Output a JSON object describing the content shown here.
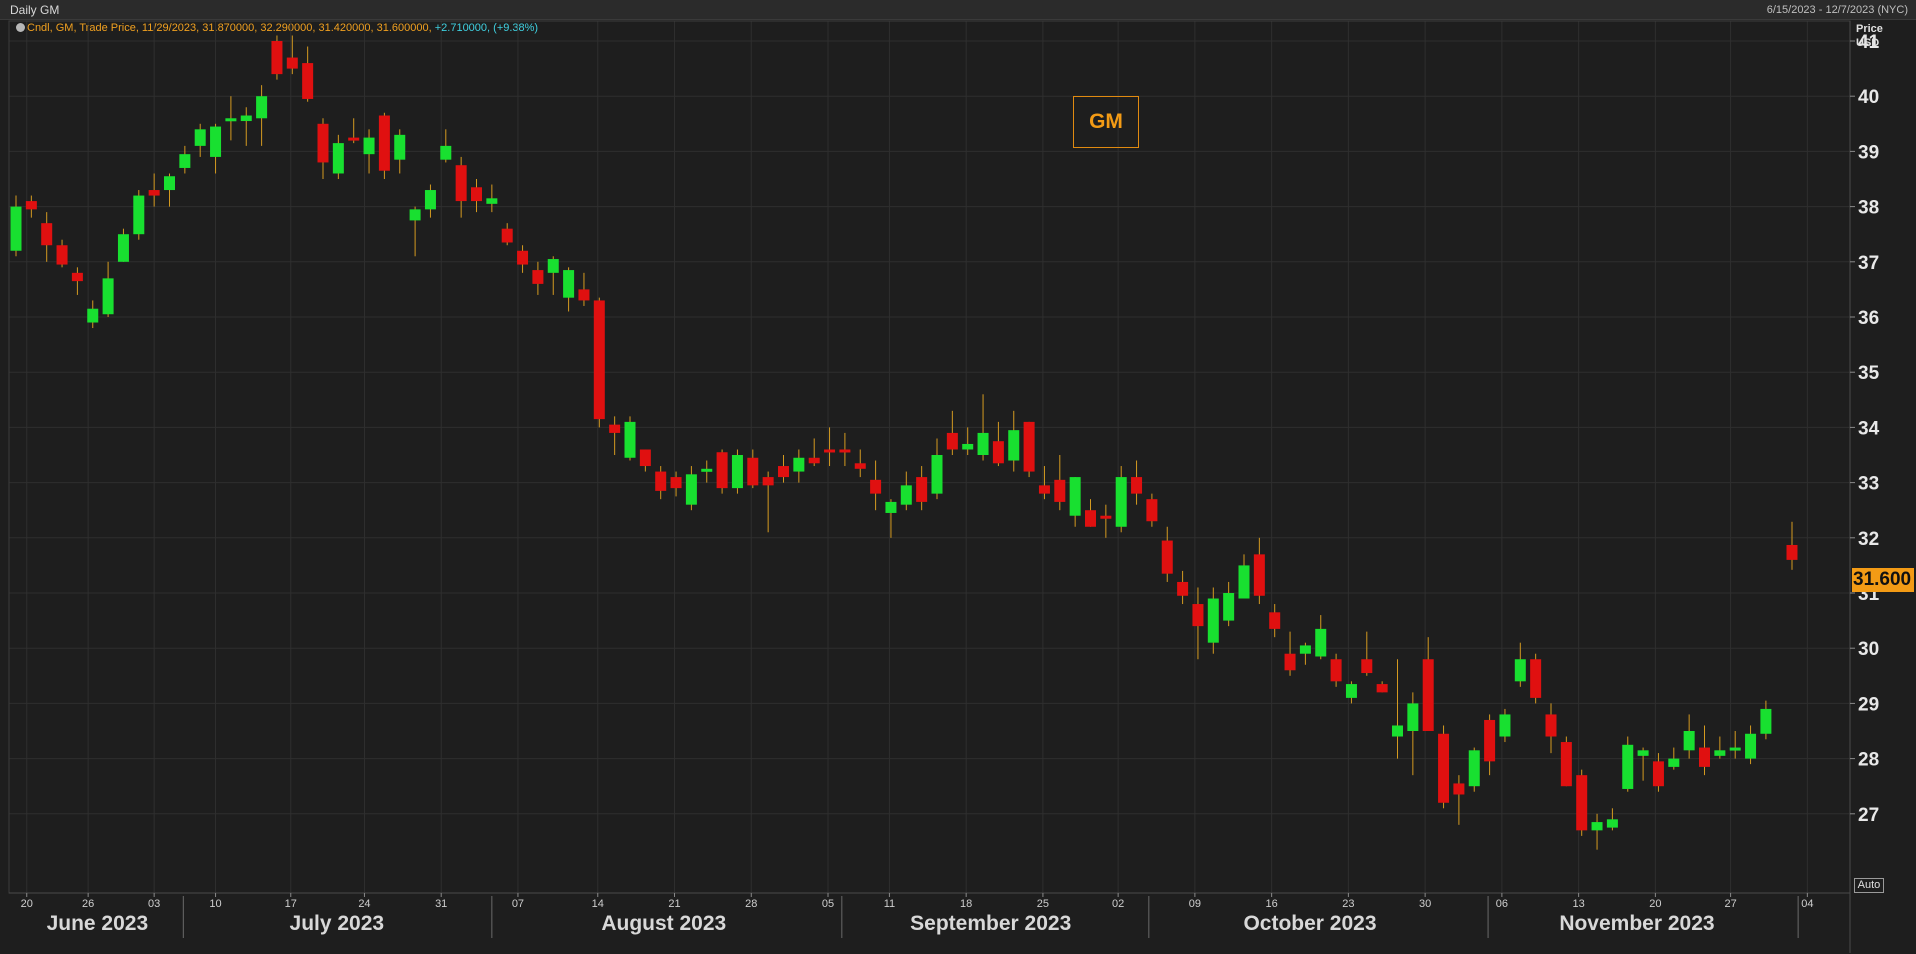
{
  "window": {
    "title": "Daily GM",
    "date_range": "6/15/2023 - 12/7/2023 (NYC)"
  },
  "info_line": {
    "prefix": "Cndl, GM, Trade Price, 11/29/2023, 31.870000, 32.290000, 31.420000, 31.600000,",
    "change": "+2.710000, (+9.38%)"
  },
  "ticker_label": "GM",
  "last_price_badge": "31.600",
  "auto_button": "Auto",
  "colors": {
    "up": "#18e030",
    "down": "#e01010",
    "wick": "#d49a20",
    "badge": "#f39b15"
  },
  "chart_data": {
    "type": "candlestick",
    "y_axis": {
      "title_line1": "Price",
      "title_line2": "USD",
      "min": 26.0,
      "max": 41.5,
      "ticks": [
        27,
        28,
        29,
        30,
        31,
        32,
        33,
        34,
        35,
        36,
        37,
        38,
        39,
        40,
        41
      ]
    },
    "x_day_ticks": [
      {
        "label": "20",
        "t": 0.7
      },
      {
        "label": "26",
        "t": 4.7
      },
      {
        "label": "03",
        "t": 9.0
      },
      {
        "label": "10",
        "t": 13.0
      },
      {
        "label": "17",
        "t": 17.9
      },
      {
        "label": "24",
        "t": 22.7
      },
      {
        "label": "31",
        "t": 27.7
      },
      {
        "label": "07",
        "t": 32.7
      },
      {
        "label": "14",
        "t": 37.9
      },
      {
        "label": "21",
        "t": 42.9
      },
      {
        "label": "28",
        "t": 47.9
      },
      {
        "label": "05",
        "t": 52.9
      },
      {
        "label": "11",
        "t": 56.9
      },
      {
        "label": "18",
        "t": 61.9
      },
      {
        "label": "25",
        "t": 66.9
      },
      {
        "label": "02",
        "t": 71.8
      },
      {
        "label": "09",
        "t": 76.8
      },
      {
        "label": "16",
        "t": 81.8
      },
      {
        "label": "23",
        "t": 86.8
      },
      {
        "label": "30",
        "t": 91.8
      },
      {
        "label": "06",
        "t": 96.8
      },
      {
        "label": "13",
        "t": 101.8
      },
      {
        "label": "20",
        "t": 106.8
      },
      {
        "label": "27",
        "t": 111.7
      },
      {
        "label": "04",
        "t": 116.7
      }
    ],
    "months": [
      {
        "label": "June 2023",
        "t": 5.3,
        "sep": 10.9
      },
      {
        "label": "July 2023",
        "t": 20.9,
        "sep": 31.0
      },
      {
        "label": "August 2023",
        "t": 42.2,
        "sep": 53.8
      },
      {
        "label": "September 2023",
        "t": 63.5,
        "sep": 73.8
      },
      {
        "label": "October 2023",
        "t": 84.3,
        "sep": 95.9
      },
      {
        "label": "November 2023",
        "t": 105.6,
        "sep": 116.1
      }
    ],
    "candles": [
      {
        "t": 0,
        "o": 37.2,
        "h": 38.2,
        "l": 37.1,
        "c": 38.0
      },
      {
        "t": 1,
        "o": 38.1,
        "h": 38.2,
        "l": 37.8,
        "c": 37.95
      },
      {
        "t": 2,
        "o": 37.7,
        "h": 37.9,
        "l": 37.0,
        "c": 37.3
      },
      {
        "t": 3,
        "o": 37.3,
        "h": 37.4,
        "l": 36.9,
        "c": 36.95
      },
      {
        "t": 4,
        "o": 36.8,
        "h": 36.9,
        "l": 36.4,
        "c": 36.65
      },
      {
        "t": 5,
        "o": 35.9,
        "h": 36.3,
        "l": 35.8,
        "c": 36.15
      },
      {
        "t": 6,
        "o": 36.05,
        "h": 37.0,
        "l": 36.0,
        "c": 36.7
      },
      {
        "t": 7,
        "o": 37.0,
        "h": 37.6,
        "l": 37.0,
        "c": 37.5
      },
      {
        "t": 8,
        "o": 37.5,
        "h": 38.3,
        "l": 37.4,
        "c": 38.2
      },
      {
        "t": 9,
        "o": 38.3,
        "h": 38.6,
        "l": 38.0,
        "c": 38.2
      },
      {
        "t": 10,
        "o": 38.3,
        "h": 38.6,
        "l": 38.0,
        "c": 38.55
      },
      {
        "t": 11,
        "o": 38.7,
        "h": 39.1,
        "l": 38.6,
        "c": 38.95
      },
      {
        "t": 12,
        "o": 39.1,
        "h": 39.5,
        "l": 38.9,
        "c": 39.4
      },
      {
        "t": 13,
        "o": 38.9,
        "h": 39.5,
        "l": 38.6,
        "c": 39.45
      },
      {
        "t": 14,
        "o": 39.55,
        "h": 40.0,
        "l": 39.2,
        "c": 39.6
      },
      {
        "t": 15,
        "o": 39.55,
        "h": 39.8,
        "l": 39.1,
        "c": 39.65
      },
      {
        "t": 16,
        "o": 39.6,
        "h": 40.2,
        "l": 39.1,
        "c": 40.0
      },
      {
        "t": 17,
        "o": 41.0,
        "h": 41.1,
        "l": 40.3,
        "c": 40.4
      },
      {
        "t": 18,
        "o": 40.7,
        "h": 41.1,
        "l": 40.4,
        "c": 40.5
      },
      {
        "t": 19,
        "o": 40.6,
        "h": 40.9,
        "l": 39.9,
        "c": 39.95
      },
      {
        "t": 20,
        "o": 39.5,
        "h": 39.6,
        "l": 38.5,
        "c": 38.8
      },
      {
        "t": 21,
        "o": 38.6,
        "h": 39.3,
        "l": 38.5,
        "c": 39.15
      },
      {
        "t": 22,
        "o": 39.25,
        "h": 39.6,
        "l": 39.15,
        "c": 39.2
      },
      {
        "t": 23,
        "o": 38.95,
        "h": 39.4,
        "l": 38.6,
        "c": 39.25
      },
      {
        "t": 24,
        "o": 39.65,
        "h": 39.7,
        "l": 38.5,
        "c": 38.65
      },
      {
        "t": 25,
        "o": 38.85,
        "h": 39.4,
        "l": 38.6,
        "c": 39.3
      },
      {
        "t": 26,
        "o": 37.75,
        "h": 38.0,
        "l": 37.1,
        "c": 37.95
      },
      {
        "t": 27,
        "o": 37.95,
        "h": 38.4,
        "l": 37.8,
        "c": 38.3
      },
      {
        "t": 28,
        "o": 38.85,
        "h": 39.4,
        "l": 38.8,
        "c": 39.1
      },
      {
        "t": 29,
        "o": 38.75,
        "h": 38.9,
        "l": 37.8,
        "c": 38.1
      },
      {
        "t": 30,
        "o": 38.35,
        "h": 38.5,
        "l": 37.9,
        "c": 38.1
      },
      {
        "t": 31,
        "o": 38.05,
        "h": 38.4,
        "l": 37.9,
        "c": 38.15
      },
      {
        "t": 32,
        "o": 37.6,
        "h": 37.7,
        "l": 37.3,
        "c": 37.35
      },
      {
        "t": 33,
        "o": 37.2,
        "h": 37.3,
        "l": 36.8,
        "c": 36.95
      },
      {
        "t": 34,
        "o": 36.85,
        "h": 37.0,
        "l": 36.4,
        "c": 36.6
      },
      {
        "t": 35,
        "o": 36.8,
        "h": 37.1,
        "l": 36.4,
        "c": 37.05
      },
      {
        "t": 36,
        "o": 36.35,
        "h": 36.9,
        "l": 36.1,
        "c": 36.85
      },
      {
        "t": 37,
        "o": 36.5,
        "h": 36.8,
        "l": 36.2,
        "c": 36.3
      },
      {
        "t": 38,
        "o": 36.3,
        "h": 36.35,
        "l": 34.0,
        "c": 34.15
      },
      {
        "t": 39,
        "o": 34.05,
        "h": 34.2,
        "l": 33.5,
        "c": 33.9
      },
      {
        "t": 40,
        "o": 33.45,
        "h": 34.2,
        "l": 33.4,
        "c": 34.1
      },
      {
        "t": 41,
        "o": 33.6,
        "h": 33.6,
        "l": 33.2,
        "c": 33.3
      },
      {
        "t": 42,
        "o": 33.2,
        "h": 33.3,
        "l": 32.7,
        "c": 32.85
      },
      {
        "t": 43,
        "o": 33.1,
        "h": 33.2,
        "l": 32.75,
        "c": 32.9
      },
      {
        "t": 44,
        "o": 32.6,
        "h": 33.3,
        "l": 32.5,
        "c": 33.15
      },
      {
        "t": 45,
        "o": 33.25,
        "h": 33.4,
        "l": 33.0,
        "c": 33.25
      },
      {
        "t": 46,
        "o": 33.55,
        "h": 33.6,
        "l": 32.8,
        "c": 32.9
      },
      {
        "t": 47,
        "o": 32.9,
        "h": 33.6,
        "l": 32.8,
        "c": 33.5
      },
      {
        "t": 48,
        "o": 33.45,
        "h": 33.6,
        "l": 32.9,
        "c": 32.95
      },
      {
        "t": 49,
        "o": 33.1,
        "h": 33.2,
        "l": 32.1,
        "c": 32.95
      },
      {
        "t": 50,
        "o": 33.3,
        "h": 33.5,
        "l": 33.0,
        "c": 33.1
      },
      {
        "t": 51,
        "o": 33.2,
        "h": 33.6,
        "l": 33.0,
        "c": 33.45
      },
      {
        "t": 52,
        "o": 33.45,
        "h": 33.8,
        "l": 33.3,
        "c": 33.35
      },
      {
        "t": 53,
        "o": 33.6,
        "h": 34.0,
        "l": 33.3,
        "c": 33.55
      },
      {
        "t": 54,
        "o": 33.6,
        "h": 33.9,
        "l": 33.3,
        "c": 33.55
      },
      {
        "t": 55,
        "o": 33.35,
        "h": 33.6,
        "l": 33.1,
        "c": 33.25
      },
      {
        "t": 56,
        "o": 33.05,
        "h": 33.4,
        "l": 32.5,
        "c": 32.8
      },
      {
        "t": 57,
        "o": 32.45,
        "h": 32.7,
        "l": 32.0,
        "c": 32.65
      },
      {
        "t": 58,
        "o": 32.6,
        "h": 33.2,
        "l": 32.5,
        "c": 32.95
      },
      {
        "t": 59,
        "o": 33.1,
        "h": 33.3,
        "l": 32.5,
        "c": 32.65
      },
      {
        "t": 60,
        "o": 32.8,
        "h": 33.8,
        "l": 32.7,
        "c": 33.5
      },
      {
        "t": 61,
        "o": 33.9,
        "h": 34.3,
        "l": 33.5,
        "c": 33.6
      },
      {
        "t": 62,
        "o": 33.6,
        "h": 34.0,
        "l": 33.5,
        "c": 33.7
      },
      {
        "t": 63,
        "o": 33.5,
        "h": 34.6,
        "l": 33.4,
        "c": 33.9
      },
      {
        "t": 64,
        "o": 33.75,
        "h": 34.1,
        "l": 33.3,
        "c": 33.35
      },
      {
        "t": 65,
        "o": 33.4,
        "h": 34.3,
        "l": 33.2,
        "c": 33.95
      },
      {
        "t": 66,
        "o": 34.1,
        "h": 34.1,
        "l": 33.1,
        "c": 33.2
      },
      {
        "t": 67,
        "o": 32.95,
        "h": 33.3,
        "l": 32.7,
        "c": 32.8
      },
      {
        "t": 68,
        "o": 33.05,
        "h": 33.5,
        "l": 32.5,
        "c": 32.65
      },
      {
        "t": 69,
        "o": 32.4,
        "h": 33.1,
        "l": 32.2,
        "c": 33.1
      },
      {
        "t": 70,
        "o": 32.5,
        "h": 32.7,
        "l": 32.2,
        "c": 32.2
      },
      {
        "t": 71,
        "o": 32.4,
        "h": 32.6,
        "l": 32.0,
        "c": 32.35
      },
      {
        "t": 72,
        "o": 32.2,
        "h": 33.3,
        "l": 32.1,
        "c": 33.1
      },
      {
        "t": 73,
        "o": 33.1,
        "h": 33.4,
        "l": 32.6,
        "c": 32.8
      },
      {
        "t": 74,
        "o": 32.7,
        "h": 32.8,
        "l": 32.2,
        "c": 32.3
      },
      {
        "t": 75,
        "o": 31.95,
        "h": 32.2,
        "l": 31.2,
        "c": 31.35
      },
      {
        "t": 76,
        "o": 31.2,
        "h": 31.4,
        "l": 30.8,
        "c": 30.95
      },
      {
        "t": 77,
        "o": 30.8,
        "h": 31.1,
        "l": 29.8,
        "c": 30.4
      },
      {
        "t": 78,
        "o": 30.1,
        "h": 31.1,
        "l": 29.9,
        "c": 30.9
      },
      {
        "t": 79,
        "o": 30.5,
        "h": 31.2,
        "l": 30.4,
        "c": 31.0
      },
      {
        "t": 80,
        "o": 30.9,
        "h": 31.7,
        "l": 30.9,
        "c": 31.5
      },
      {
        "t": 81,
        "o": 31.7,
        "h": 32.0,
        "l": 30.8,
        "c": 30.95
      },
      {
        "t": 82,
        "o": 30.65,
        "h": 30.8,
        "l": 30.2,
        "c": 30.35
      },
      {
        "t": 83,
        "o": 29.9,
        "h": 30.3,
        "l": 29.5,
        "c": 29.6
      },
      {
        "t": 84,
        "o": 29.9,
        "h": 30.1,
        "l": 29.7,
        "c": 30.05
      },
      {
        "t": 85,
        "o": 29.85,
        "h": 30.6,
        "l": 29.8,
        "c": 30.35
      },
      {
        "t": 86,
        "o": 29.8,
        "h": 29.9,
        "l": 29.3,
        "c": 29.4
      },
      {
        "t": 87,
        "o": 29.1,
        "h": 29.4,
        "l": 29.0,
        "c": 29.35
      },
      {
        "t": 88,
        "o": 29.8,
        "h": 30.3,
        "l": 29.5,
        "c": 29.55
      },
      {
        "t": 89,
        "o": 29.35,
        "h": 29.4,
        "l": 29.2,
        "c": 29.2
      },
      {
        "t": 90,
        "o": 28.4,
        "h": 29.8,
        "l": 28.0,
        "c": 28.6
      },
      {
        "t": 91,
        "o": 28.5,
        "h": 29.2,
        "l": 27.7,
        "c": 29.0
      },
      {
        "t": 92,
        "o": 29.8,
        "h": 30.2,
        "l": 28.5,
        "c": 28.5
      },
      {
        "t": 93,
        "o": 28.45,
        "h": 28.6,
        "l": 27.1,
        "c": 27.2
      },
      {
        "t": 94,
        "o": 27.55,
        "h": 27.7,
        "l": 26.8,
        "c": 27.35
      },
      {
        "t": 95,
        "o": 27.5,
        "h": 28.2,
        "l": 27.4,
        "c": 28.15
      },
      {
        "t": 96,
        "o": 28.7,
        "h": 28.8,
        "l": 27.7,
        "c": 27.95
      },
      {
        "t": 97,
        "o": 28.4,
        "h": 28.9,
        "l": 28.3,
        "c": 28.8
      },
      {
        "t": 98,
        "o": 29.4,
        "h": 30.1,
        "l": 29.3,
        "c": 29.8
      },
      {
        "t": 99,
        "o": 29.8,
        "h": 29.9,
        "l": 29.0,
        "c": 29.1
      },
      {
        "t": 100,
        "o": 28.8,
        "h": 29.0,
        "l": 28.1,
        "c": 28.4
      },
      {
        "t": 101,
        "o": 28.3,
        "h": 28.4,
        "l": 27.5,
        "c": 27.5
      },
      {
        "t": 102,
        "o": 27.7,
        "h": 27.8,
        "l": 26.6,
        "c": 26.7
      },
      {
        "t": 103,
        "o": 26.7,
        "h": 27.0,
        "l": 26.35,
        "c": 26.85
      },
      {
        "t": 104,
        "o": 26.75,
        "h": 27.1,
        "l": 26.7,
        "c": 26.9
      },
      {
        "t": 105,
        "o": 27.45,
        "h": 28.4,
        "l": 27.4,
        "c": 28.25
      },
      {
        "t": 106,
        "o": 28.05,
        "h": 28.2,
        "l": 27.6,
        "c": 28.15
      },
      {
        "t": 107,
        "o": 27.95,
        "h": 28.1,
        "l": 27.4,
        "c": 27.5
      },
      {
        "t": 108,
        "o": 27.85,
        "h": 28.2,
        "l": 27.8,
        "c": 28.0
      },
      {
        "t": 109,
        "o": 28.15,
        "h": 28.8,
        "l": 28.0,
        "c": 28.5
      },
      {
        "t": 110,
        "o": 28.2,
        "h": 28.6,
        "l": 27.7,
        "c": 27.85
      },
      {
        "t": 111,
        "o": 28.05,
        "h": 28.4,
        "l": 28.0,
        "c": 28.15
      },
      {
        "t": 112,
        "o": 28.15,
        "h": 28.5,
        "l": 28.0,
        "c": 28.2
      },
      {
        "t": 113,
        "o": 28.0,
        "h": 28.6,
        "l": 27.9,
        "c": 28.45
      },
      {
        "t": 114,
        "o": 28.45,
        "h": 29.05,
        "l": 28.35,
        "c": 28.9
      },
      {
        "t": 115.7,
        "o": 31.87,
        "h": 32.29,
        "l": 31.42,
        "c": 31.6
      }
    ]
  }
}
